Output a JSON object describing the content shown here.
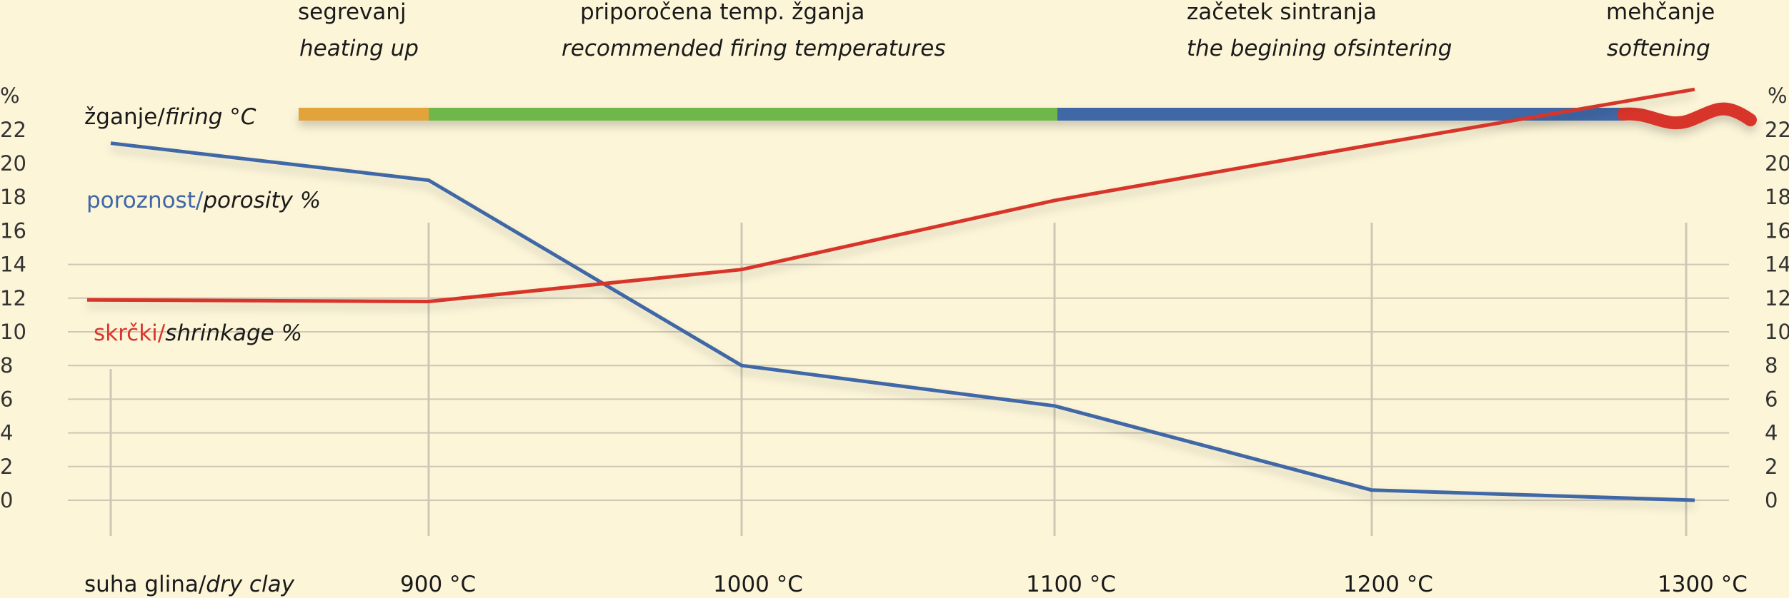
{
  "phases": [
    {
      "label_sl": "segrevanj",
      "label_en": "heating up",
      "color": "#e3a33b",
      "from": 850,
      "to": 900
    },
    {
      "label_sl": "priporočena temp. žganja",
      "label_en": "recommended firing temperatures",
      "color": "#6db84a",
      "from": 900,
      "to": 1100
    },
    {
      "label_sl": "začetek sintranja",
      "label_en": "the begining ofsintering",
      "color": "#3f67a6",
      "from": 1100,
      "to": 1280
    },
    {
      "label_sl": "mehčanje",
      "label_en": "softening",
      "color": "#d8362c",
      "from": 1280,
      "to": 1300
    }
  ],
  "series_labels": {
    "firing_sl": "žganje/",
    "firing_en": "firing °C",
    "porosity_sl": "poroznost/",
    "porosity_en": "porosity %",
    "shrinkage_sl": "skrčki/",
    "shrinkage_en": "shrinkage %"
  },
  "axis": {
    "unit_left": "%",
    "unit_right": "%",
    "x_first_sl": "suha glina/",
    "x_first_en": "dry clay"
  },
  "colors": {
    "porosity": "#3f67a6",
    "shrinkage": "#d8362c",
    "background": "#fcf5d8",
    "grid": "#cfc7b5"
  },
  "chart_data": {
    "type": "line",
    "categories": [
      "suha glina/dry clay",
      "900 °C",
      "1000 °C",
      "1100 °C",
      "1200 °C",
      "1300 °C"
    ],
    "series": [
      {
        "name": "poroznost/porosity %",
        "values": [
          21.2,
          19.0,
          8.0,
          5.6,
          0.6,
          0.0
        ]
      },
      {
        "name": "skrčki/shrinkage %",
        "values": [
          11.9,
          11.8,
          13.7,
          17.8,
          21.1,
          24.4
        ]
      }
    ],
    "y_ticks": [
      0,
      2,
      4,
      6,
      8,
      10,
      12,
      14,
      16,
      18,
      20,
      22
    ],
    "ylim": [
      0,
      22
    ],
    "grid": true
  }
}
